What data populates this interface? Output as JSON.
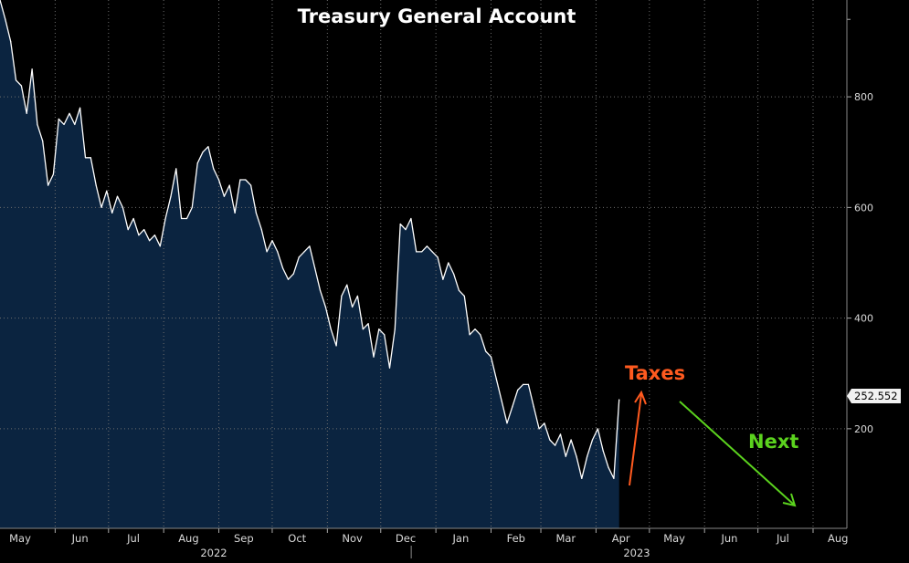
{
  "colors": {
    "background": "#000000",
    "area_fill": "#0b2440",
    "line": "#ffffff",
    "grid": "#6e6e6e",
    "taxes": "#ff5a1f",
    "next": "#5bd21e"
  },
  "chart_data": {
    "type": "area",
    "title": "Treasury General Account",
    "xlabel": "",
    "ylabel": "",
    "ylim": [
      20,
      975
    ],
    "y_ticks": [
      200,
      400,
      600,
      800
    ],
    "y_axis_side": "right",
    "grid": true,
    "last_value_label": "252.552",
    "x_tick_labels": [
      "May",
      "Jun",
      "Jul",
      "Aug",
      "Sep",
      "Oct",
      "Nov",
      "Dec",
      "Jan",
      "Feb",
      "Mar",
      "Apr",
      "May",
      "Jun",
      "Jul",
      "Aug"
    ],
    "year_labels": [
      "2022",
      "2023"
    ],
    "xlim": [
      "2022-05-01",
      "2023-08-20"
    ],
    "series": [
      {
        "x": [
          "2022-05-01",
          "2022-05-04",
          "2022-05-07",
          "2022-05-10",
          "2022-05-13",
          "2022-05-16",
          "2022-05-19",
          "2022-05-22",
          "2022-05-25",
          "2022-05-28",
          "2022-05-31",
          "2022-06-03",
          "2022-06-06",
          "2022-06-09",
          "2022-06-12",
          "2022-06-15",
          "2022-06-18",
          "2022-06-21",
          "2022-06-24",
          "2022-06-27",
          "2022-06-30",
          "2022-07-03",
          "2022-07-06",
          "2022-07-09",
          "2022-07-12",
          "2022-07-15",
          "2022-07-18",
          "2022-07-21",
          "2022-07-24",
          "2022-07-27",
          "2022-07-30",
          "2022-08-02",
          "2022-08-05",
          "2022-08-08",
          "2022-08-11",
          "2022-08-14",
          "2022-08-17",
          "2022-08-20",
          "2022-08-23",
          "2022-08-26",
          "2022-08-29",
          "2022-09-01",
          "2022-09-04",
          "2022-09-07",
          "2022-09-10",
          "2022-09-13",
          "2022-09-16",
          "2022-09-19",
          "2022-09-22",
          "2022-09-25",
          "2022-09-28",
          "2022-10-01",
          "2022-10-04",
          "2022-10-07",
          "2022-10-10",
          "2022-10-13",
          "2022-10-16",
          "2022-10-19",
          "2022-10-22",
          "2022-10-25",
          "2022-10-28",
          "2022-10-31",
          "2022-11-03",
          "2022-11-06",
          "2022-11-09",
          "2022-11-12",
          "2022-11-15",
          "2022-11-18",
          "2022-11-21",
          "2022-11-24",
          "2022-11-27",
          "2022-11-30",
          "2022-12-03",
          "2022-12-06",
          "2022-12-09",
          "2022-12-12",
          "2022-12-15",
          "2022-12-18",
          "2022-12-21",
          "2022-12-24",
          "2022-12-27",
          "2022-12-30",
          "2023-01-02",
          "2023-01-05",
          "2023-01-08",
          "2023-01-11",
          "2023-01-14",
          "2023-01-17",
          "2023-01-20",
          "2023-01-23",
          "2023-01-26",
          "2023-01-29",
          "2023-02-01",
          "2023-02-04",
          "2023-02-07",
          "2023-02-10",
          "2023-02-13",
          "2023-02-16",
          "2023-02-19",
          "2023-02-22",
          "2023-02-25",
          "2023-02-28",
          "2023-03-03",
          "2023-03-06",
          "2023-03-09",
          "2023-03-12",
          "2023-03-15",
          "2023-03-18",
          "2023-03-21",
          "2023-03-24",
          "2023-03-27",
          "2023-03-30",
          "2023-04-02",
          "2023-04-05",
          "2023-04-08",
          "2023-04-11",
          "2023-04-14"
        ],
        "values": [
          975,
          940,
          900,
          830,
          820,
          770,
          850,
          750,
          720,
          640,
          660,
          760,
          750,
          770,
          750,
          780,
          690,
          690,
          640,
          600,
          630,
          590,
          620,
          600,
          560,
          580,
          550,
          560,
          540,
          550,
          530,
          580,
          620,
          670,
          580,
          580,
          600,
          680,
          700,
          710,
          670,
          650,
          620,
          640,
          590,
          650,
          650,
          640,
          590,
          560,
          520,
          540,
          520,
          490,
          470,
          480,
          510,
          520,
          530,
          490,
          450,
          420,
          380,
          350,
          440,
          460,
          420,
          440,
          380,
          390,
          330,
          380,
          370,
          310,
          380,
          570,
          560,
          580,
          520,
          520,
          530,
          520,
          510,
          470,
          500,
          480,
          450,
          440,
          370,
          380,
          370,
          340,
          330,
          290,
          250,
          210,
          240,
          270,
          280,
          280,
          240,
          200,
          210,
          180,
          170,
          190,
          150,
          180,
          150,
          110,
          150,
          180,
          200,
          160,
          130,
          110,
          252.552
        ]
      }
    ],
    "annotations": [
      {
        "text": "Taxes",
        "color": "taxes"
      },
      {
        "text": "Next",
        "color": "next"
      }
    ]
  }
}
